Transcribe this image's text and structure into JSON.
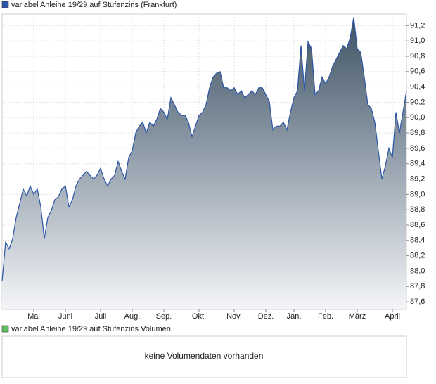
{
  "chart_data": [
    {
      "type": "area",
      "series": [
        {
          "name": "variabel Anleihe 19/29 auf Stufenzins (Frankfurt)",
          "color": "#2b55a8",
          "values": [
            87.87,
            88.38,
            88.29,
            88.42,
            88.7,
            88.88,
            89.07,
            88.98,
            89.11,
            89.0,
            89.07,
            88.84,
            88.42,
            88.7,
            88.79,
            88.93,
            88.97,
            89.07,
            89.11,
            88.84,
            88.93,
            89.11,
            89.2,
            89.25,
            89.3,
            89.25,
            89.2,
            89.25,
            89.34,
            89.2,
            89.11,
            89.2,
            89.25,
            89.43,
            89.3,
            89.2,
            89.48,
            89.57,
            89.8,
            89.89,
            89.94,
            89.8,
            89.94,
            89.89,
            89.98,
            90.12,
            90.07,
            89.98,
            90.26,
            90.17,
            90.07,
            90.03,
            90.03,
            89.94,
            89.75,
            89.89,
            90.03,
            90.07,
            90.17,
            90.39,
            90.53,
            90.58,
            90.6,
            90.39,
            90.39,
            90.35,
            90.39,
            90.3,
            90.35,
            90.26,
            90.3,
            90.35,
            90.3,
            90.39,
            90.39,
            90.3,
            90.21,
            89.84,
            89.89,
            89.89,
            89.94,
            89.84,
            90.07,
            90.26,
            90.35,
            90.94,
            90.35,
            90.99,
            90.9,
            90.3,
            90.35,
            90.53,
            90.44,
            90.53,
            90.67,
            90.76,
            90.85,
            90.94,
            90.9,
            91.04,
            91.31,
            90.9,
            90.85,
            90.53,
            90.17,
            90.12,
            89.94,
            89.57,
            89.2,
            89.37,
            89.6,
            89.48,
            90.07,
            89.8,
            90.07,
            90.35
          ]
        }
      ],
      "categories": [
        null,
        null,
        null,
        null,
        null,
        null,
        null,
        null,
        null,
        "Mai",
        null,
        null,
        null,
        null,
        null,
        null,
        null,
        null,
        "Juni",
        null,
        null,
        null,
        null,
        null,
        null,
        null,
        null,
        null,
        "Juli",
        null,
        null,
        null,
        null,
        null,
        null,
        null,
        null,
        "Aug.",
        null,
        null,
        null,
        null,
        null,
        null,
        null,
        null,
        "Sep.",
        null,
        null,
        null,
        null,
        null,
        null,
        null,
        null,
        null,
        "Okt.",
        null,
        null,
        null,
        null,
        null,
        null,
        null,
        null,
        null,
        "Nov.",
        null,
        null,
        null,
        null,
        null,
        null,
        null,
        null,
        "Dez.",
        null,
        null,
        null,
        null,
        null,
        null,
        null,
        "Jan.",
        null,
        null,
        null,
        null,
        null,
        null,
        null,
        null,
        "Feb.",
        null,
        null,
        null,
        null,
        null,
        null,
        null,
        null,
        "März",
        null,
        null,
        null,
        null,
        null,
        null,
        null,
        null,
        null,
        "April",
        null,
        null,
        null,
        null
      ],
      "ylim": [
        87.5,
        91.35
      ],
      "yticks": [
        {
          "value": 87.6,
          "label": "87,6"
        },
        {
          "value": 87.8,
          "label": "87,8"
        },
        {
          "value": 88.0,
          "label": "88,0"
        },
        {
          "value": 88.2,
          "label": "88,2"
        },
        {
          "value": 88.4,
          "label": "88,4"
        },
        {
          "value": 88.6,
          "label": "88,6"
        },
        {
          "value": 88.8,
          "label": "88,8"
        },
        {
          "value": 89.0,
          "label": "89,0"
        },
        {
          "value": 89.2,
          "label": "89,2"
        },
        {
          "value": 89.4,
          "label": "89,4"
        },
        {
          "value": 89.6,
          "label": "89,6"
        },
        {
          "value": 89.8,
          "label": "89,8"
        },
        {
          "value": 90.0,
          "label": "90,0"
        },
        {
          "value": 90.2,
          "label": "90,2"
        },
        {
          "value": 90.4,
          "label": "90,4"
        },
        {
          "value": 90.6,
          "label": "90,6"
        },
        {
          "value": 90.8,
          "label": "90,8"
        },
        {
          "value": 91.0,
          "label": "91,0"
        },
        {
          "value": 91.2,
          "label": "91,2"
        }
      ],
      "grid": true
    },
    {
      "type": "bar",
      "series": [
        {
          "name": "variabel Anleihe 19/29 auf Stufenzins Volumen",
          "color": "#5fbf5f"
        }
      ],
      "annotation": "keine Volumendaten vorhanden"
    }
  ]
}
